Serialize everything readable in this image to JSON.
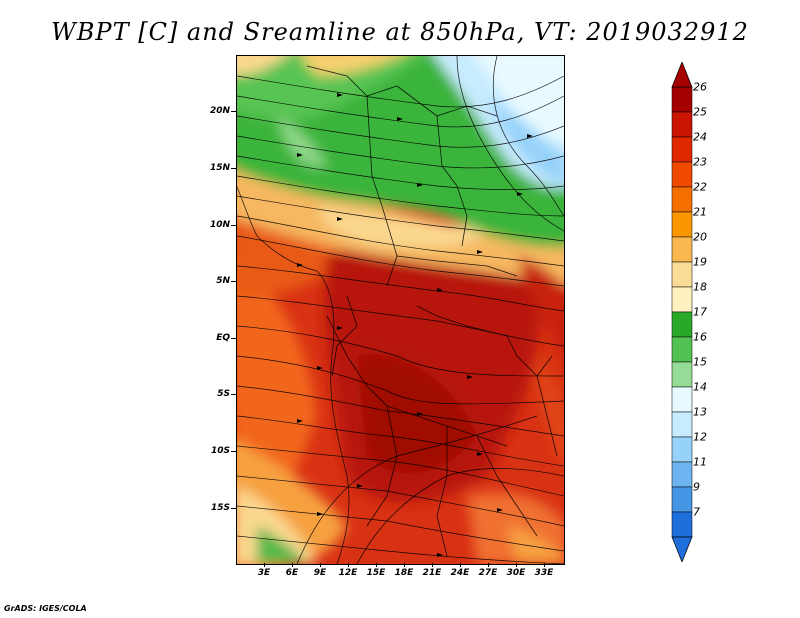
{
  "title": "WBPT [C] and Sreamline at 850hPa, VT: 2019032912",
  "credit": "GrADS: IGES/COLA",
  "map": {
    "variable": "Wet-bulb potential temperature with streamlines",
    "lat_labels": [
      "20N",
      "15N",
      "10N",
      "5N",
      "EQ",
      "5S",
      "10S",
      "15S"
    ],
    "lon_labels": [
      "3E",
      "6E",
      "9E",
      "12E",
      "15E",
      "18E",
      "21E",
      "24E",
      "27E",
      "30E",
      "33E"
    ]
  },
  "colorbar": {
    "labels": [
      "26",
      "25",
      "24",
      "23",
      "22",
      "21",
      "20",
      "19",
      "18",
      "17",
      "16",
      "15",
      "14",
      "13",
      "12",
      "11",
      "9",
      "7"
    ],
    "colors": [
      "#a50000",
      "#c81400",
      "#e02800",
      "#f04a00",
      "#f56e00",
      "#fa9600",
      "#fab850",
      "#fadc96",
      "#fff0c0",
      "#2aa82a",
      "#52c252",
      "#96dc96",
      "#e6faff",
      "#c8ecff",
      "#96d2fa",
      "#6eb4f0",
      "#4696e6",
      "#1e6edc"
    ]
  }
}
